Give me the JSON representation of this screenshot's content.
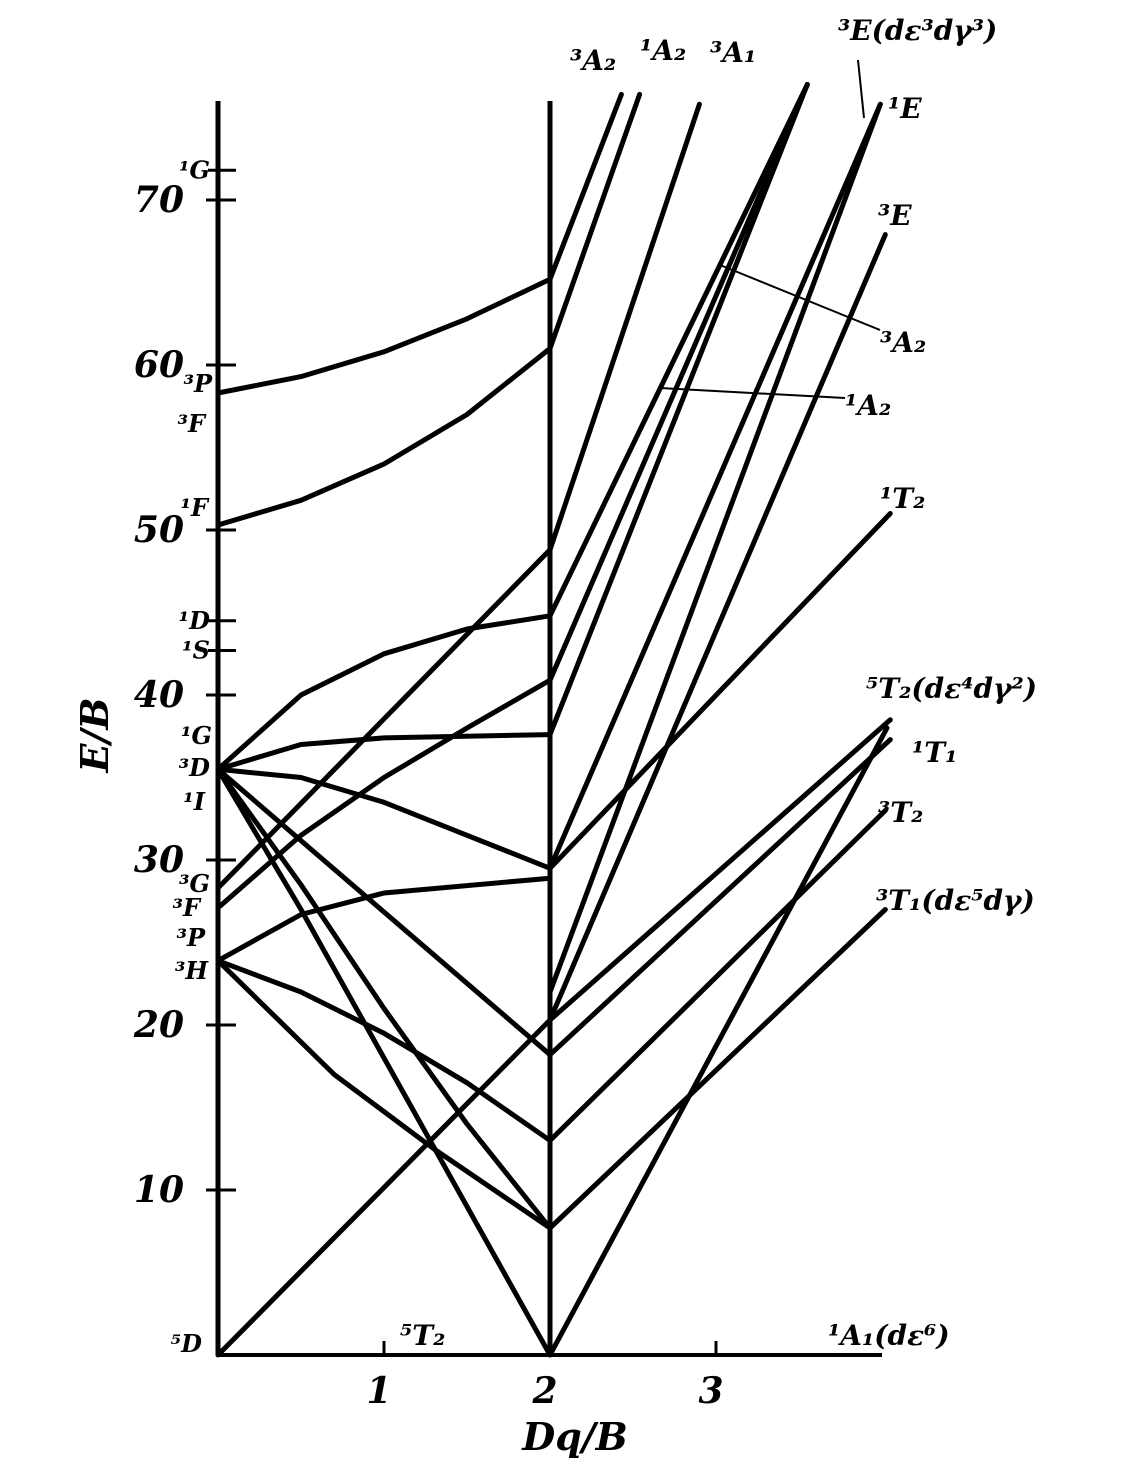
{
  "chart_data": {
    "type": "line",
    "x_label": "Dq/B",
    "y_label": "E/B",
    "xlim": [
      0,
      4
    ],
    "ylim": [
      0,
      76
    ],
    "xticks": [
      1,
      2,
      3
    ],
    "yticks": [
      10,
      20,
      30,
      40,
      50,
      60,
      70
    ],
    "color": "#000000",
    "term_ticks": [
      {
        "value": 71.8,
        "label": "¹G"
      },
      {
        "value": 44.5,
        "label": "¹D"
      },
      {
        "value": 42.7,
        "label": "¹S"
      }
    ],
    "left_terms": [
      "³P",
      "³F",
      "¹F",
      "¹G",
      "³D",
      "¹I",
      "³G",
      "³F",
      "³P",
      "³H",
      "⁵D"
    ],
    "line_labels": [
      "³A₂",
      "¹A₂",
      "³A₁",
      "³E(dε³dγ³)",
      "¹E",
      "³E",
      "³A₂",
      "¹A₂",
      "¹T₂",
      "⁵T₂(dε⁴dγ²)",
      "¹T₁",
      "³T₂",
      "³T₁(dε⁵dγ)",
      "¹A₁(dε⁶)",
      "⁵T₂"
    ],
    "series": [
      {
        "x": [
          0,
          0.5,
          1,
          1.5,
          2
        ],
        "values": [
          58.3,
          59.3,
          60.8,
          62.8,
          65.2
        ]
      },
      {
        "x": [
          0,
          0.5,
          1,
          1.5,
          2
        ],
        "values": [
          50.3,
          51.8,
          54,
          57,
          61
        ]
      },
      {
        "x": [
          0,
          0.5,
          1,
          1.5,
          2
        ],
        "values": [
          35.5,
          40,
          42.5,
          44,
          44.8
        ]
      },
      {
        "x": [
          0,
          0.5,
          1,
          2
        ],
        "values": [
          35.5,
          37,
          37.4,
          37.6
        ]
      },
      {
        "x": [
          0,
          0.5,
          1,
          1.5,
          2
        ],
        "values": [
          35.5,
          35,
          33.5,
          31.5,
          29.5
        ]
      },
      {
        "x": [
          0,
          2
        ],
        "values": [
          35.5,
          18.2
        ]
      },
      {
        "x": [
          0,
          0.5,
          1,
          2
        ],
        "values": [
          35.5,
          27,
          18,
          0
        ]
      },
      {
        "x": [
          0,
          0.5,
          1,
          1.5,
          2
        ],
        "values": [
          35.5,
          28.5,
          21,
          14,
          7.7
        ]
      },
      {
        "x": [
          0,
          2
        ],
        "values": [
          28.3,
          48.8
        ]
      },
      {
        "x": [
          0,
          0.5,
          1,
          1.5,
          2
        ],
        "values": [
          27.1,
          31.5,
          35,
          38,
          40.9
        ]
      },
      {
        "x": [
          0,
          0.5,
          1,
          2
        ],
        "values": [
          23.9,
          26.7,
          28,
          28.9
        ]
      },
      {
        "x": [
          0,
          0.5,
          1,
          1.5,
          2
        ],
        "values": [
          23.9,
          22,
          19.5,
          16.5,
          13
        ]
      },
      {
        "x": [
          0,
          0.7,
          1.3,
          2
        ],
        "values": [
          23.9,
          17,
          12.5,
          7.7
        ]
      },
      {
        "x": [
          0,
          2,
          4.05
        ],
        "values": [
          0,
          20.3,
          38.5
        ]
      },
      {
        "x": [
          2,
          4.02
        ],
        "values": [
          7.7,
          27
        ]
      },
      {
        "x": [
          2,
          4.02
        ],
        "values": [
          13,
          33
        ]
      },
      {
        "x": [
          2,
          4.05
        ],
        "values": [
          18.2,
          37.3
        ]
      },
      {
        "x": [
          2,
          4.03
        ],
        "values": [
          0,
          38
        ]
      },
      {
        "x": [
          2,
          4.05
        ],
        "values": [
          29.5,
          51
        ]
      },
      {
        "x": [
          2,
          4.02
        ],
        "values": [
          20.3,
          67.9
        ]
      },
      {
        "x": [
          2,
          3.99
        ],
        "values": [
          22,
          75.8
        ]
      },
      {
        "x": [
          2,
          3.55
        ],
        "values": [
          37.6,
          77
        ]
      },
      {
        "x": [
          2,
          3.55
        ],
        "values": [
          40.9,
          77
        ]
      },
      {
        "x": [
          2,
          3.55
        ],
        "values": [
          44.8,
          77
        ]
      },
      {
        "x": [
          2,
          2.9
        ],
        "values": [
          48.8,
          75.8
        ]
      },
      {
        "x": [
          2,
          2.54
        ],
        "values": [
          61,
          76.4
        ]
      },
      {
        "x": [
          2,
          2.43
        ],
        "values": [
          65.2,
          76.4
        ]
      },
      {
        "x": [
          2,
          3.99
        ],
        "values": [
          29.5,
          75.8
        ]
      }
    ]
  }
}
